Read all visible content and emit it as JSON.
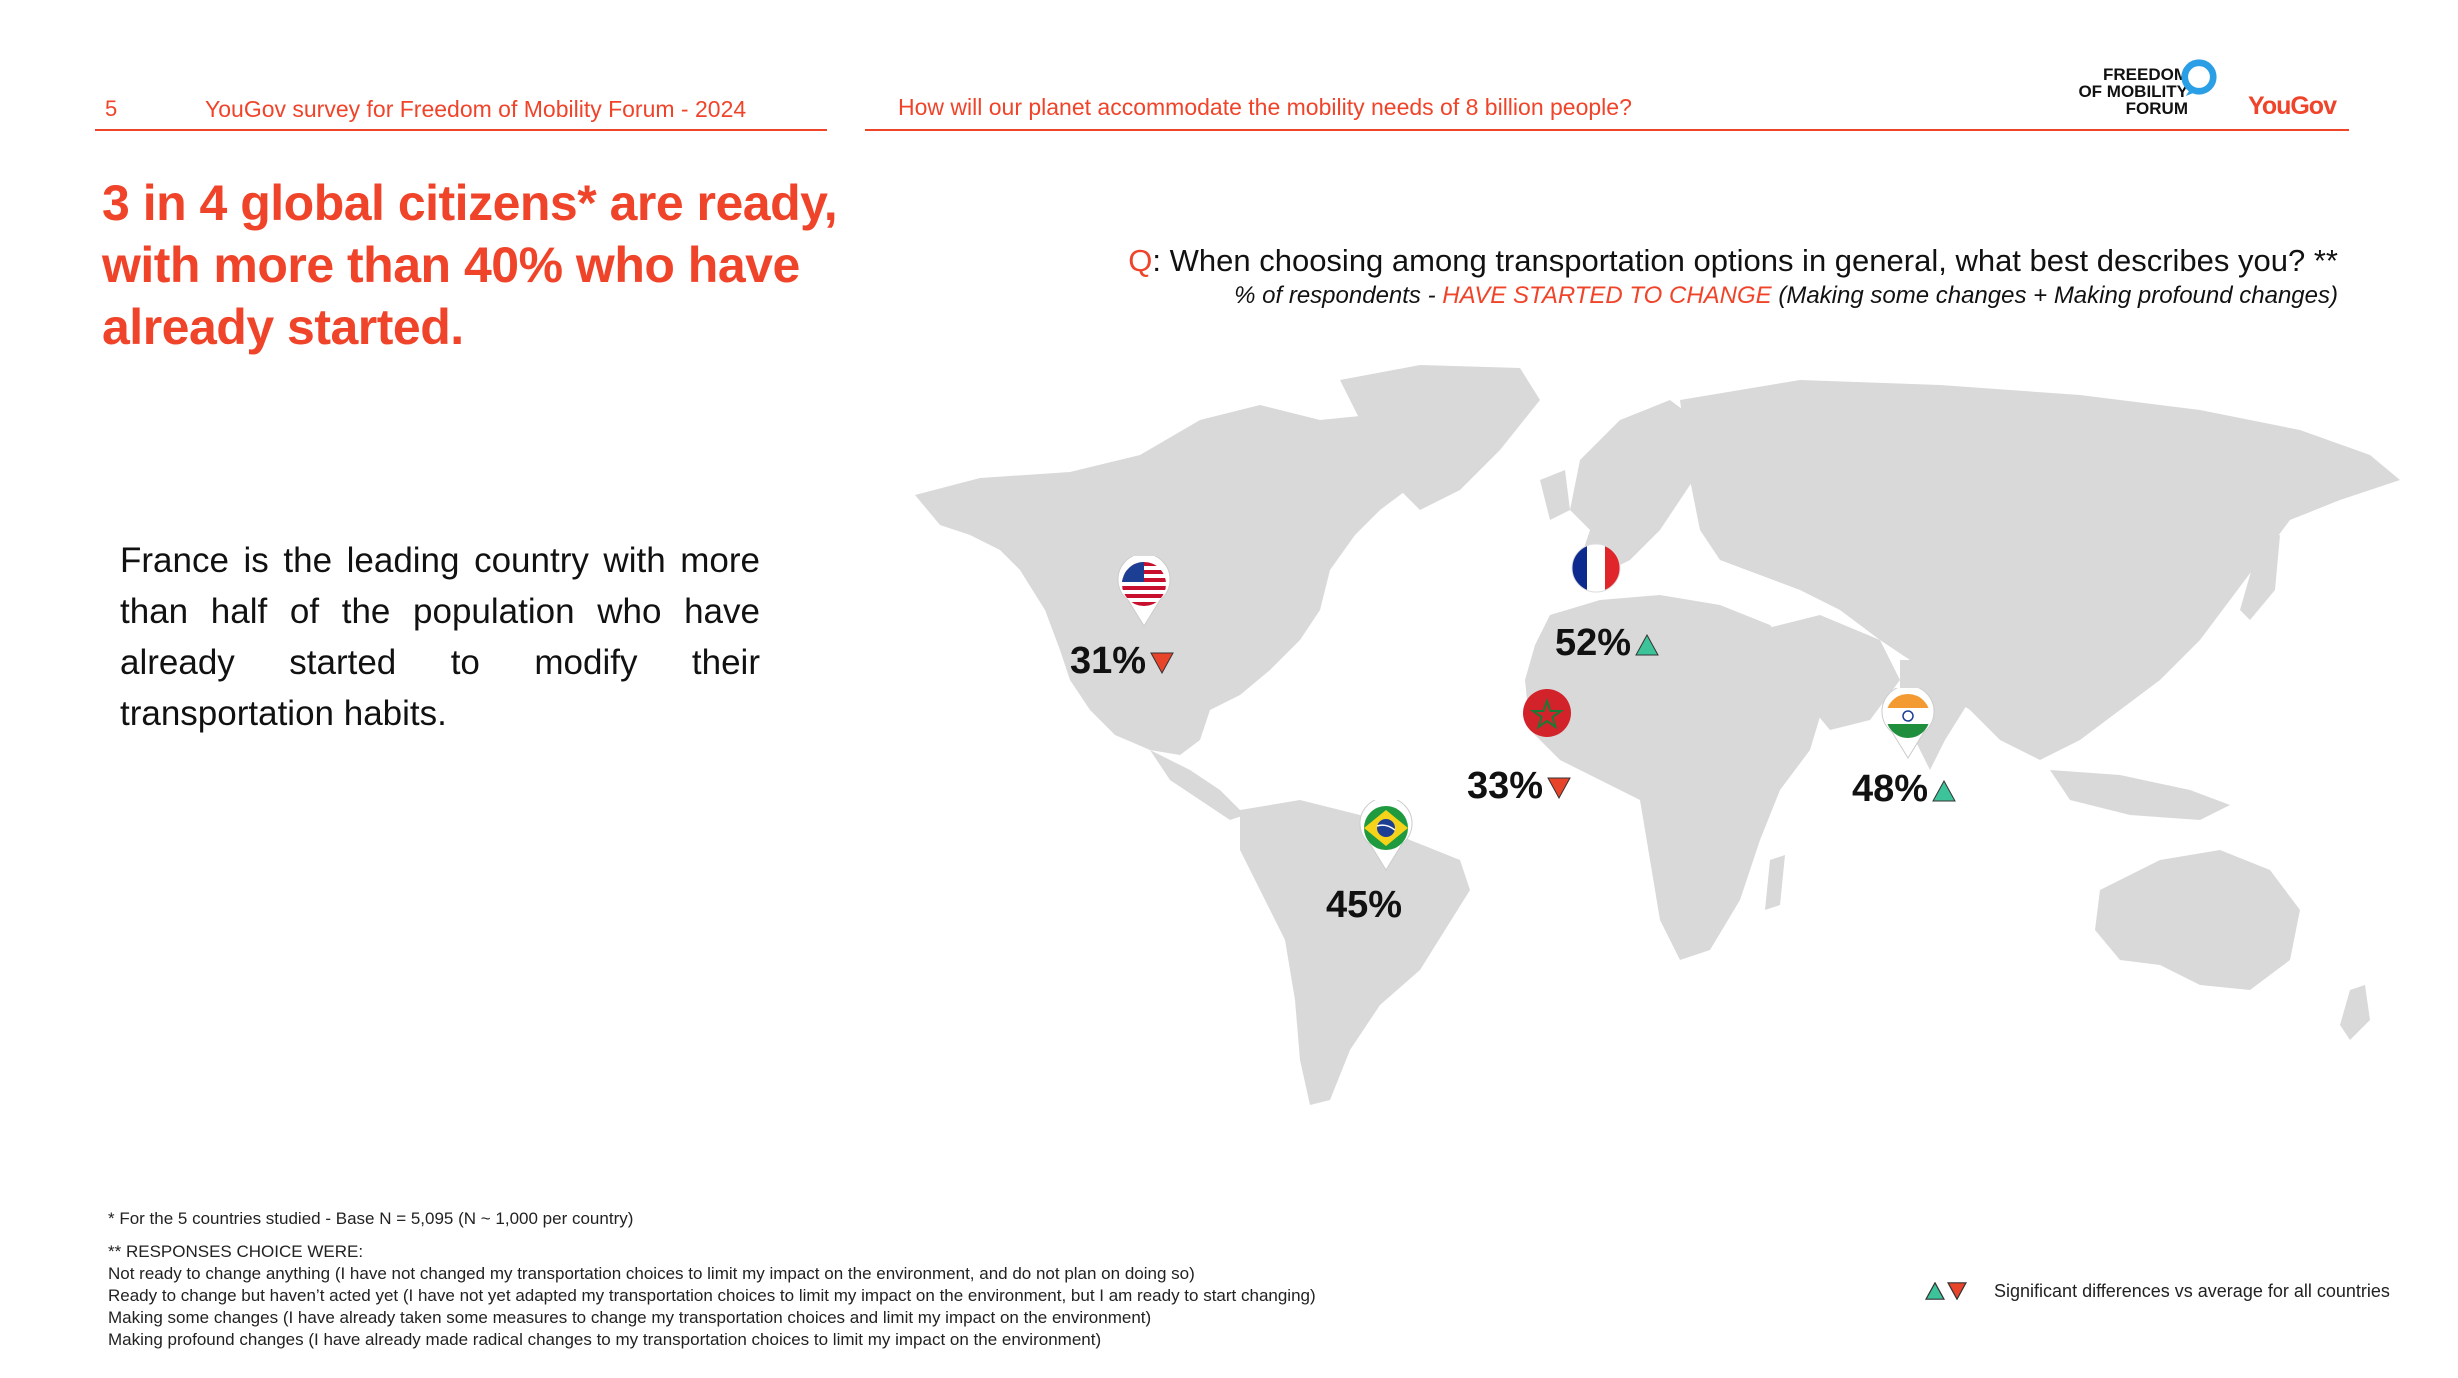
{
  "header": {
    "page_number": "5",
    "survey_title": "YouGov survey for Freedom of Mobility Forum - 2024",
    "question_banner": "How will our planet accommodate the mobility needs of 8 billion people?",
    "logo_fmf_line1": "FREEDOM",
    "logo_fmf_line2": "OF MOBILITY",
    "logo_fmf_line3": "FORUM",
    "logo_yougov": "YouGov",
    "colors": {
      "accent": "#f0442a",
      "map_land": "#d9d9d9",
      "up": "#3cc39a",
      "down": "#e8442a"
    }
  },
  "headline": "3 in 4 global citizens* are ready, with more than 40% who have already started.",
  "body_text": "France is the leading country with more than half of the population who have already started to modify their transportation habits.",
  "question": {
    "prefix": "Q",
    "text": ": When choosing among transportation options in general, what best describes you? **",
    "sub_pre": "% of respondents - ",
    "sub_highlight": "HAVE STARTED TO CHANGE",
    "sub_post": " (Making some changes + Making profound changes)"
  },
  "map_markers": [
    {
      "country": "USA",
      "flag": "us-flag-icon",
      "value": "31%",
      "trend": "down"
    },
    {
      "country": "France",
      "flag": "france-flag-icon",
      "value": "52%",
      "trend": "up"
    },
    {
      "country": "Morocco",
      "flag": "morocco-flag-icon",
      "value": "33%",
      "trend": "down"
    },
    {
      "country": "India",
      "flag": "india-flag-icon",
      "value": "48%",
      "trend": "up"
    },
    {
      "country": "Brazil",
      "flag": "brazil-flag-icon",
      "value": "45%",
      "trend": "none"
    }
  ],
  "footnotes": {
    "base": "* For the 5 countries studied - Base N = 5,095 (N ~ 1,000 per country)",
    "responses_title": "** RESPONSES CHOICE WERE:",
    "responses": [
      "Not ready to change anything (I have not changed my transportation choices to limit my impact on the environment, and do not plan on doing so)",
      "Ready to change but haven’t acted yet (I have not yet adapted my transportation choices to limit my impact on the environment, but I am ready to start changing)",
      "Making some changes (I have already taken some measures to change my transportation choices and limit my impact on the environment)",
      "Making profound changes (I have already made radical changes to my transportation choices to limit my impact on the environment)"
    ]
  },
  "legend": {
    "text": "Significant differences vs average for all countries"
  }
}
